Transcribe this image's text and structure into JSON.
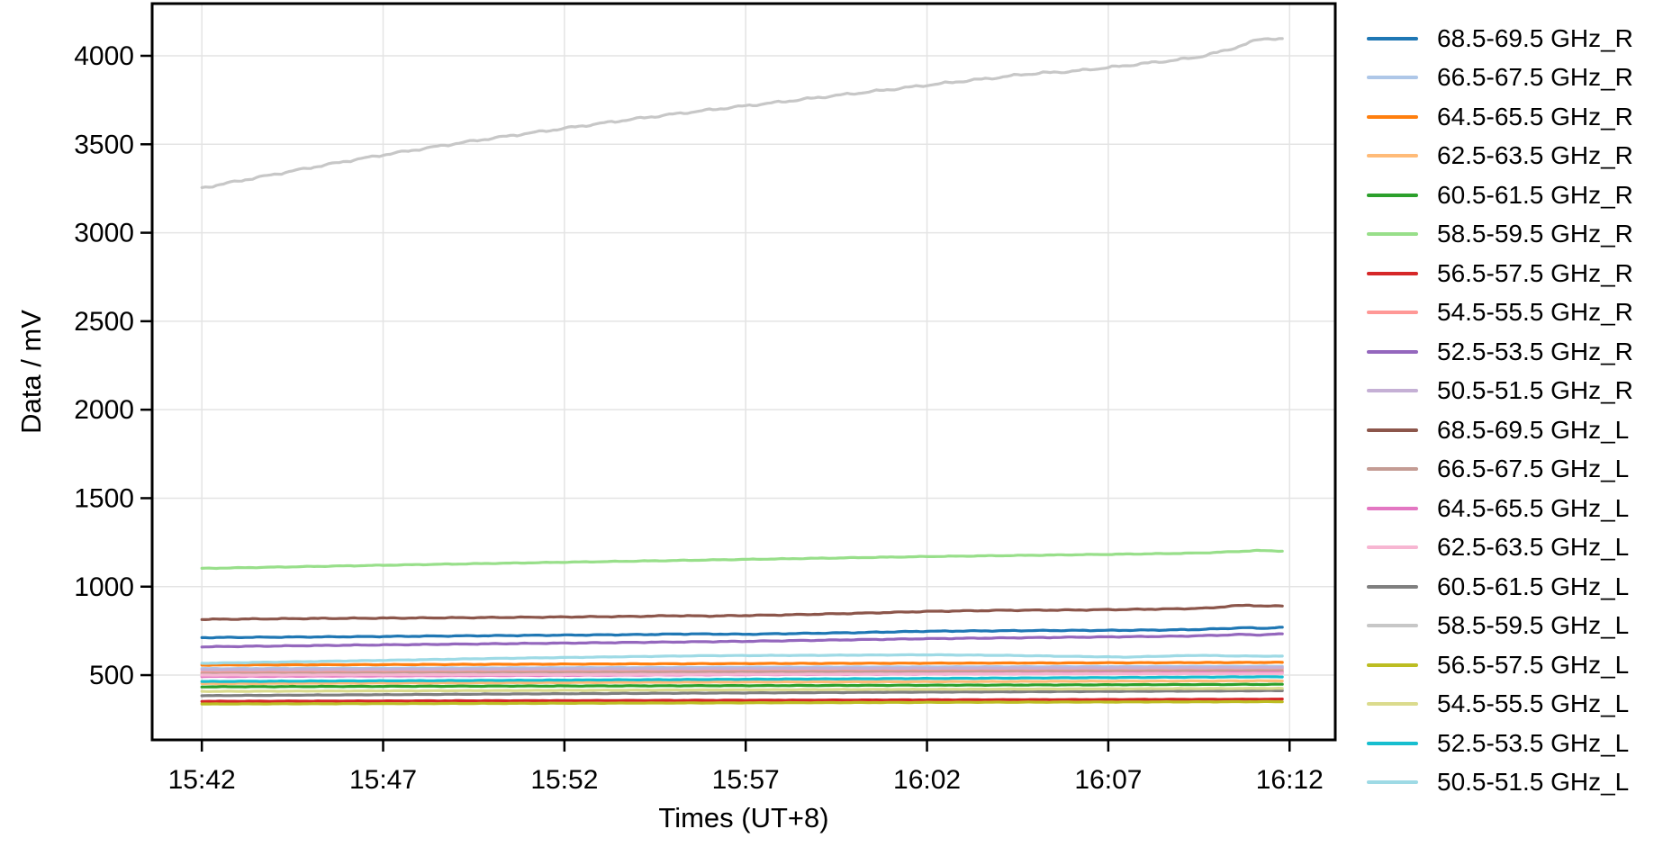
{
  "figure": {
    "background": "#ffffff",
    "grid_color": "#e4e4e4",
    "spine_color": "#000000"
  },
  "chart_data": {
    "type": "line",
    "title": "",
    "xlabel": "Times (UT+8)",
    "ylabel": "Data / mV",
    "grid": true,
    "legend_position": "right-outside",
    "x_axis": {
      "unit": "minutes after 15:42",
      "tick_minutes": [
        0,
        5,
        10,
        15,
        20,
        25,
        30
      ],
      "tick_labels": [
        "15:42",
        "15:47",
        "15:52",
        "15:57",
        "16:02",
        "16:07",
        "16:12"
      ],
      "xlim_minutes": [
        -1.37,
        31.26
      ]
    },
    "y_axis": {
      "tick_values": [
        500,
        1000,
        1500,
        2000,
        2500,
        3000,
        3500,
        4000
      ],
      "tick_labels": [
        "500",
        "1000",
        "1500",
        "2000",
        "2500",
        "3000",
        "3500",
        "4000"
      ],
      "ylim": [
        134,
        4295
      ]
    },
    "series": [
      {
        "name": "68.5-69.5 GHz_R",
        "color": "#1f77b4",
        "noise_mV": 2.5,
        "points": [
          [
            0,
            712
          ],
          [
            4,
            717
          ],
          [
            8,
            723
          ],
          [
            12,
            729
          ],
          [
            13.5,
            733
          ],
          [
            15,
            731
          ],
          [
            18,
            740
          ],
          [
            20,
            748
          ],
          [
            23,
            752
          ],
          [
            25,
            753
          ],
          [
            26.5,
            755
          ],
          [
            27.5,
            758
          ],
          [
            28.3,
            764
          ],
          [
            28.8,
            768
          ],
          [
            29.3,
            765
          ],
          [
            29.8,
            769
          ]
        ]
      },
      {
        "name": "66.5-67.5 GHz_R",
        "color": "#aec7e8",
        "noise_mV": 1.5,
        "points": [
          [
            0,
            537
          ],
          [
            8,
            541
          ],
          [
            16,
            545
          ],
          [
            24,
            548
          ],
          [
            29.8,
            550
          ]
        ]
      },
      {
        "name": "64.5-65.5 GHz_R",
        "color": "#ff7f0e",
        "noise_mV": 1.5,
        "points": [
          [
            0,
            557
          ],
          [
            8,
            561
          ],
          [
            16,
            566
          ],
          [
            24,
            569
          ],
          [
            29.8,
            572
          ]
        ]
      },
      {
        "name": "62.5-63.5 GHz_R",
        "color": "#ffbb78",
        "noise_mV": 1.5,
        "points": [
          [
            0,
            452
          ],
          [
            8,
            457
          ],
          [
            16,
            461
          ],
          [
            24,
            465
          ],
          [
            29.8,
            468
          ]
        ]
      },
      {
        "name": "60.5-61.5 GHz_R",
        "color": "#2ca02c",
        "noise_mV": 1.5,
        "points": [
          [
            0,
            434
          ],
          [
            8,
            438
          ],
          [
            16,
            441
          ],
          [
            24,
            445
          ],
          [
            29.8,
            448
          ]
        ]
      },
      {
        "name": "58.5-59.5 GHz_R",
        "color": "#98df8a",
        "noise_mV": 2,
        "points": [
          [
            0,
            1103
          ],
          [
            5,
            1121
          ],
          [
            10,
            1138
          ],
          [
            15,
            1154
          ],
          [
            20,
            1170
          ],
          [
            24,
            1180
          ],
          [
            26,
            1185
          ],
          [
            27.5,
            1190
          ],
          [
            28.5,
            1198
          ],
          [
            29.1,
            1204
          ],
          [
            29.5,
            1203
          ],
          [
            29.8,
            1201
          ]
        ]
      },
      {
        "name": "56.5-57.5 GHz_R",
        "color": "#d62728",
        "noise_mV": 1.2,
        "points": [
          [
            0,
            352
          ],
          [
            10,
            356
          ],
          [
            20,
            360
          ],
          [
            29.8,
            364
          ]
        ]
      },
      {
        "name": "54.5-55.5 GHz_R",
        "color": "#ff9896",
        "noise_mV": 1.2,
        "points": [
          [
            0,
            516
          ],
          [
            10,
            524
          ],
          [
            20,
            530
          ],
          [
            29.8,
            535
          ]
        ]
      },
      {
        "name": "52.5-53.5 GHz_R",
        "color": "#9467bd",
        "noise_mV": 2.2,
        "points": [
          [
            0,
            660
          ],
          [
            5,
            671
          ],
          [
            10,
            681
          ],
          [
            15,
            691
          ],
          [
            20,
            706
          ],
          [
            23,
            712
          ],
          [
            25,
            716
          ],
          [
            27,
            720
          ],
          [
            28,
            725
          ],
          [
            28.7,
            730
          ],
          [
            29.2,
            727
          ],
          [
            29.8,
            733
          ]
        ]
      },
      {
        "name": "50.5-51.5 GHz_R",
        "color": "#c5b0d5",
        "noise_mV": 1.2,
        "points": [
          [
            0,
            530
          ],
          [
            10,
            535
          ],
          [
            20,
            539
          ],
          [
            29.8,
            543
          ]
        ]
      },
      {
        "name": "68.5-69.5 GHz_L",
        "color": "#8c564b",
        "noise_mV": 2.8,
        "points": [
          [
            0,
            815
          ],
          [
            3,
            820
          ],
          [
            6,
            823
          ],
          [
            9,
            827
          ],
          [
            12,
            832
          ],
          [
            13,
            836
          ],
          [
            14,
            834
          ],
          [
            16,
            840
          ],
          [
            18,
            849
          ],
          [
            20,
            860
          ],
          [
            22,
            866
          ],
          [
            24,
            868
          ],
          [
            25.5,
            871
          ],
          [
            27,
            875
          ],
          [
            27.8,
            879
          ],
          [
            28.4,
            891
          ],
          [
            28.9,
            895
          ],
          [
            29.4,
            889
          ],
          [
            29.8,
            892
          ]
        ]
      },
      {
        "name": "66.5-67.5 GHz_L",
        "color": "#c49c94",
        "noise_mV": 1.2,
        "points": [
          [
            0,
            508
          ],
          [
            10,
            514
          ],
          [
            20,
            519
          ],
          [
            29.8,
            524
          ]
        ]
      },
      {
        "name": "64.5-65.5 GHz_L",
        "color": "#e377c2",
        "noise_mV": 1.4,
        "points": [
          [
            0,
            492
          ],
          [
            10,
            499
          ],
          [
            20,
            506
          ],
          [
            29.8,
            514
          ]
        ]
      },
      {
        "name": "62.5-63.5 GHz_L",
        "color": "#f7b6d2",
        "noise_mV": 1.2,
        "points": [
          [
            0,
            500
          ],
          [
            10,
            503
          ],
          [
            20,
            506
          ],
          [
            29.8,
            509
          ]
        ]
      },
      {
        "name": "60.5-61.5 GHz_L",
        "color": "#7f7f7f",
        "noise_mV": 1.3,
        "points": [
          [
            0,
            384
          ],
          [
            10,
            395
          ],
          [
            20,
            404
          ],
          [
            29.8,
            412
          ]
        ]
      },
      {
        "name": "58.5-59.5 GHz_L",
        "color": "#c7c7c7",
        "noise_mV": 7,
        "points": [
          [
            0,
            3253
          ],
          [
            1,
            3292
          ],
          [
            2,
            3330
          ],
          [
            3,
            3368
          ],
          [
            4,
            3405
          ],
          [
            5,
            3440
          ],
          [
            6,
            3472
          ],
          [
            7,
            3504
          ],
          [
            8,
            3534
          ],
          [
            9,
            3562
          ],
          [
            10,
            3590
          ],
          [
            11,
            3618
          ],
          [
            12,
            3645
          ],
          [
            13,
            3670
          ],
          [
            14,
            3694
          ],
          [
            15,
            3717
          ],
          [
            16,
            3740
          ],
          [
            17,
            3764
          ],
          [
            18,
            3787
          ],
          [
            19,
            3810
          ],
          [
            20,
            3834
          ],
          [
            21,
            3857
          ],
          [
            22,
            3878
          ],
          [
            22.6,
            3894
          ],
          [
            23.2,
            3903
          ],
          [
            24,
            3912
          ],
          [
            24.6,
            3925
          ],
          [
            25.3,
            3940
          ],
          [
            26,
            3957
          ],
          [
            26.7,
            3972
          ],
          [
            27.4,
            3990
          ],
          [
            28,
            4018
          ],
          [
            28.4,
            4040
          ],
          [
            28.8,
            4066
          ],
          [
            29.1,
            4090
          ],
          [
            29.35,
            4100
          ],
          [
            29.55,
            4096
          ],
          [
            29.8,
            4092
          ]
        ]
      },
      {
        "name": "56.5-57.5 GHz_L",
        "color": "#bcbd22",
        "noise_mV": 1.2,
        "points": [
          [
            0,
            337
          ],
          [
            10,
            341
          ],
          [
            20,
            346
          ],
          [
            29.8,
            350
          ]
        ]
      },
      {
        "name": "54.5-55.5 GHz_L",
        "color": "#dbdb8d",
        "noise_mV": 1.2,
        "points": [
          [
            0,
            408
          ],
          [
            10,
            414
          ],
          [
            20,
            420
          ],
          [
            29.8,
            425
          ]
        ]
      },
      {
        "name": "52.5-53.5 GHz_L",
        "color": "#17becf",
        "noise_mV": 1.4,
        "points": [
          [
            0,
            464
          ],
          [
            10,
            472
          ],
          [
            20,
            481
          ],
          [
            29.8,
            491
          ]
        ]
      },
      {
        "name": "50.5-51.5 GHz_L",
        "color": "#9edae5",
        "noise_mV": 1.5,
        "points": [
          [
            0,
            567
          ],
          [
            4,
            580
          ],
          [
            8,
            594
          ],
          [
            12,
            605
          ],
          [
            14,
            610
          ],
          [
            17,
            612
          ],
          [
            20,
            615
          ],
          [
            22,
            612
          ],
          [
            24,
            606
          ],
          [
            25.5,
            602
          ],
          [
            26.5,
            607
          ],
          [
            27.5,
            612
          ],
          [
            28.5,
            608
          ],
          [
            29.8,
            607
          ]
        ]
      }
    ]
  }
}
